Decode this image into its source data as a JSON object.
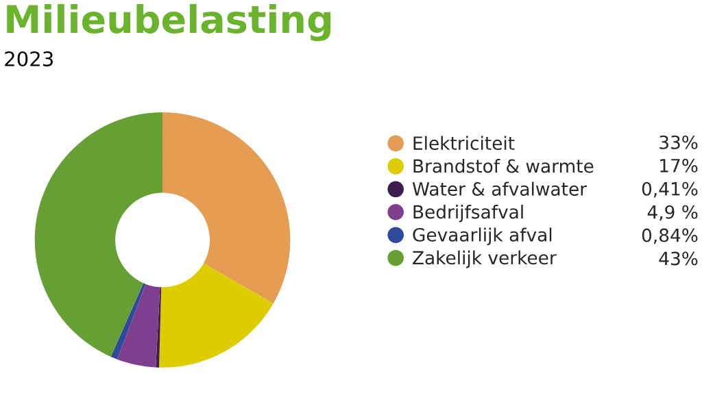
{
  "chart_data": {
    "type": "donut",
    "title": "Milieubelasting",
    "subtitle": "2023",
    "categories": [
      "Elektriciteit",
      "Brandstof & warmte",
      "Water & afvalwater",
      "Bedrijfsafval",
      "Gevaarlijk afval",
      "Zakelijk verkeer"
    ],
    "values": [
      33,
      17,
      0.41,
      4.9,
      0.84,
      43
    ],
    "value_labels": [
      "33%",
      "17%",
      "0,41%",
      "4,9 %",
      "0,84%",
      "43%"
    ],
    "colors": [
      "#e59d54",
      "#ddcc00",
      "#3f1d4f",
      "#7e3f8f",
      "#2e4a9b",
      "#66a035"
    ],
    "legend": "right"
  }
}
